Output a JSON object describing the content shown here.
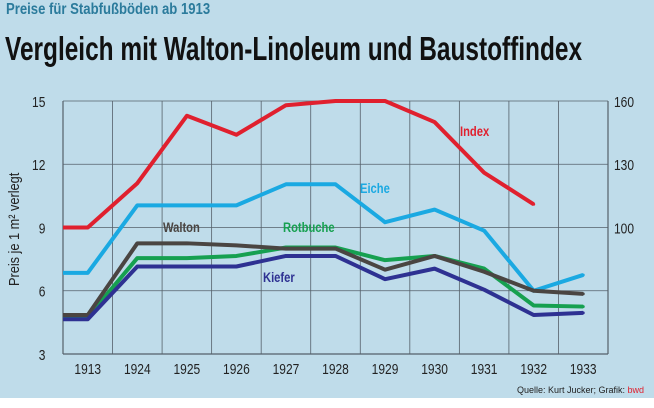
{
  "header": {
    "subtitle": "Preise für Stabfußböden ab 1913",
    "title": "Vergleich mit Walton-Linoleum und Baustoffindex"
  },
  "source": {
    "text": "Quelle: Kurt Jucker; Grafik: ",
    "brand": "bwd"
  },
  "chart_data": {
    "type": "line",
    "title": "Vergleich mit Walton-Linoleum und Baustoffindex",
    "ylabel": "Preis je 1 m² verlegt",
    "ylim": [
      3,
      15
    ],
    "yticks": [
      "3",
      "6",
      "9",
      "12",
      "15"
    ],
    "y2lim": [
      40,
      160
    ],
    "y2ticks": [
      "100",
      "130",
      "160"
    ],
    "grid": true,
    "categories": [
      "1913",
      "1924",
      "1925",
      "1926",
      "1927",
      "1928",
      "1929",
      "1930",
      "1931",
      "1932",
      "1933"
    ],
    "series": [
      {
        "name": "Index",
        "axis": "right",
        "color": "#e0202e",
        "values": [
          100,
          121,
          153,
          144,
          158,
          160,
          160,
          150,
          126,
          111,
          null
        ]
      },
      {
        "name": "Eiche",
        "axis": "left",
        "color": "#1aa9e2",
        "values": [
          6.85,
          10.05,
          10.05,
          10.05,
          11.05,
          11.05,
          9.25,
          9.85,
          8.85,
          6.0,
          6.75
        ]
      },
      {
        "name": "Walton",
        "axis": "left",
        "color": "#4a4542",
        "values": [
          4.85,
          8.25,
          8.25,
          8.15,
          8.0,
          8.0,
          7.0,
          7.65,
          6.9,
          6.0,
          5.85
        ]
      },
      {
        "name": "Rotbuche",
        "axis": "left",
        "color": "#16a050",
        "values": [
          4.75,
          7.55,
          7.55,
          7.65,
          8.05,
          8.05,
          7.45,
          7.65,
          7.05,
          5.3,
          5.25
        ]
      },
      {
        "name": "Kiefer",
        "axis": "left",
        "color": "#2e3192",
        "values": [
          4.65,
          7.15,
          7.15,
          7.15,
          7.65,
          7.65,
          6.55,
          7.05,
          6.05,
          4.85,
          4.95
        ]
      }
    ]
  }
}
